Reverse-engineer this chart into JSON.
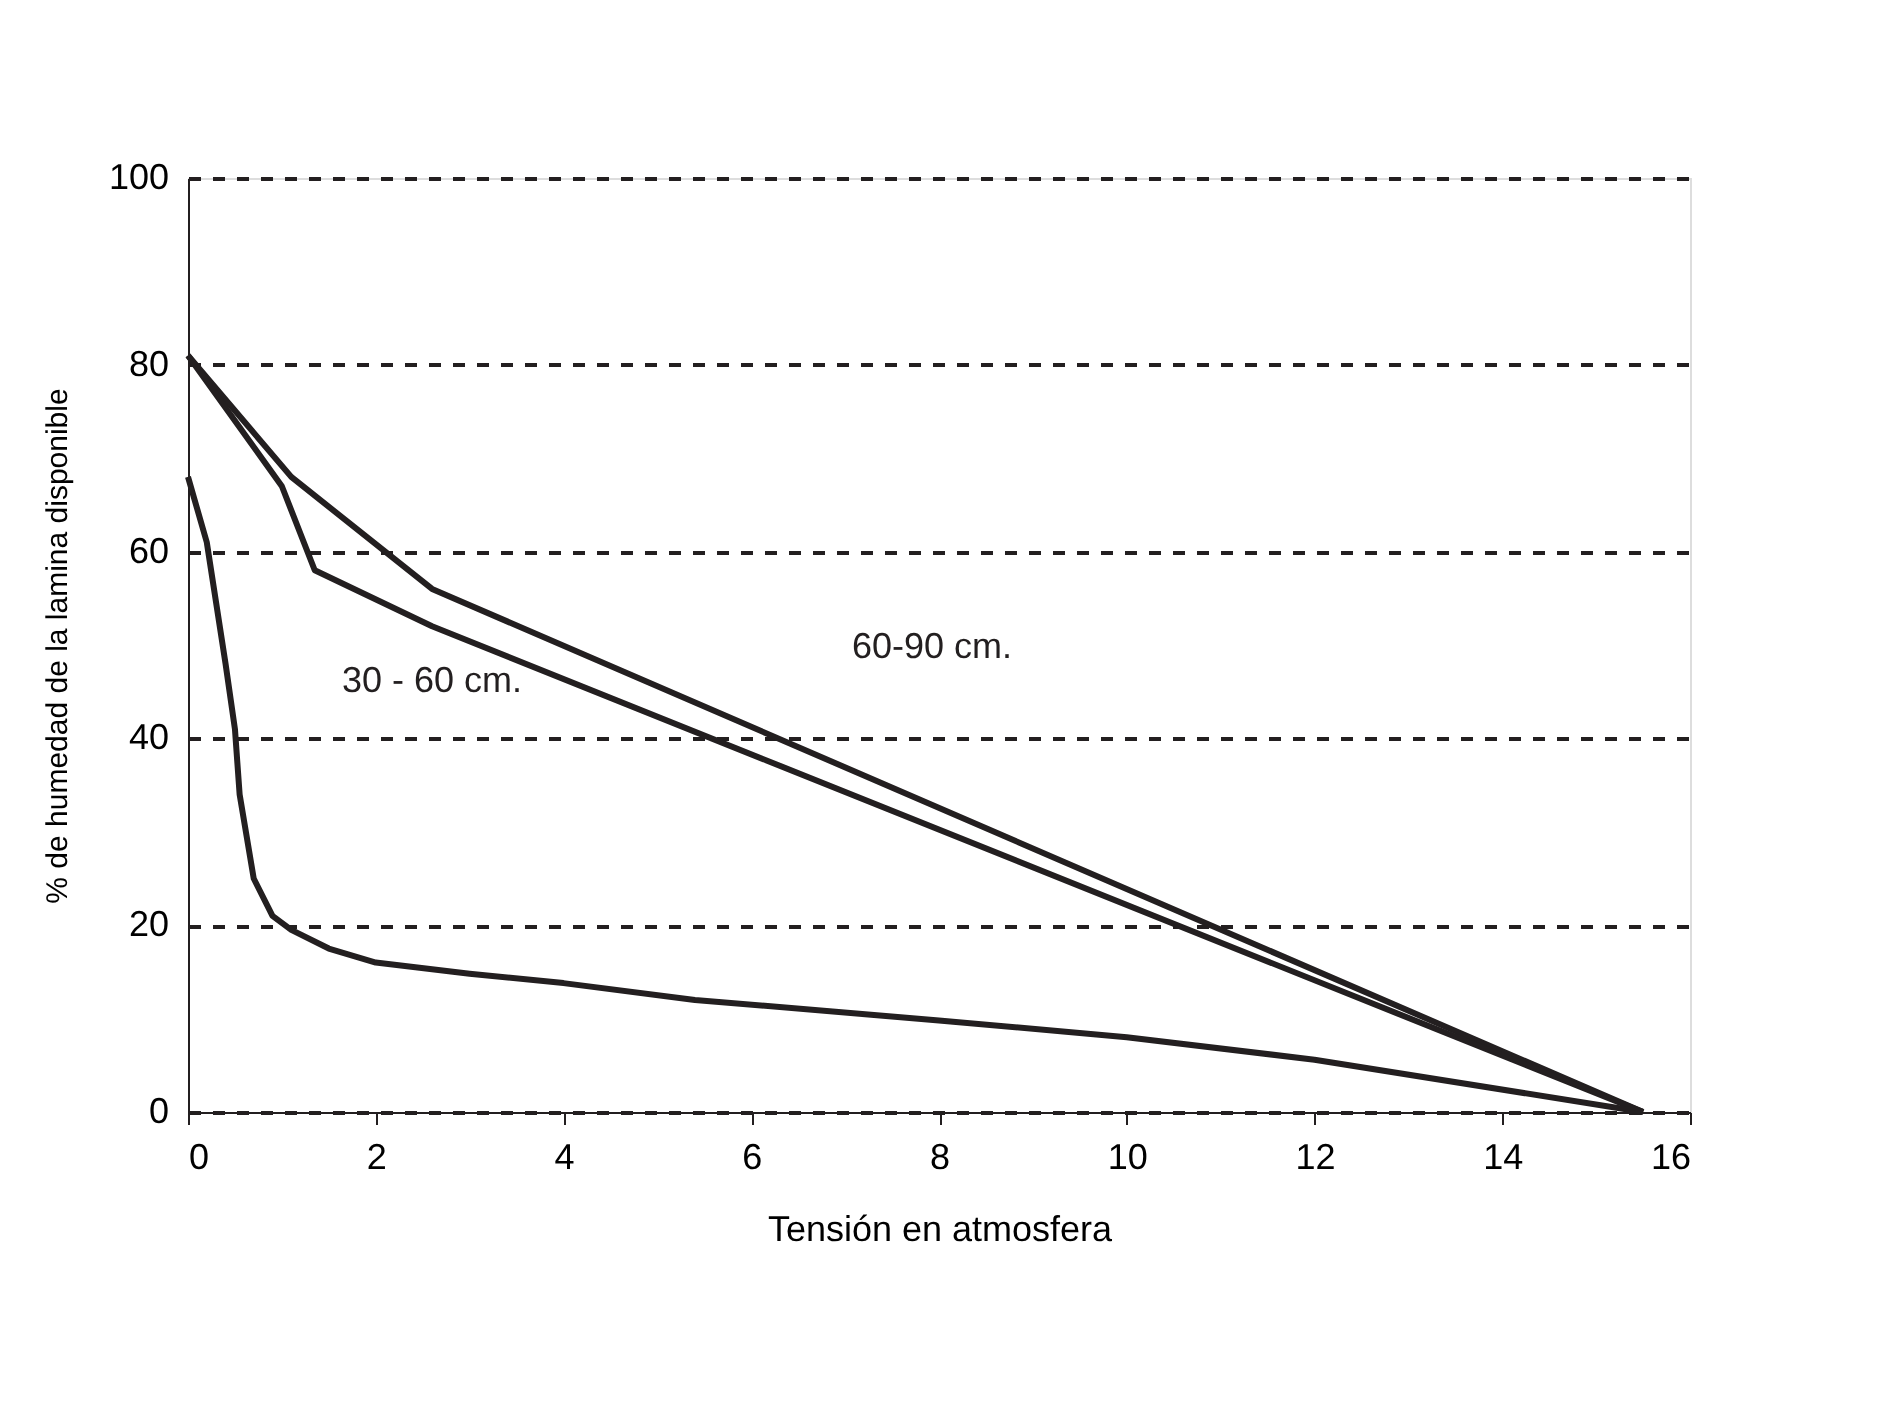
{
  "chart_data": {
    "type": "line",
    "xlabel": "Tensión en atmosfera",
    "ylabel": "% de humedad de la lamina disponible",
    "xlim": [
      0,
      16
    ],
    "xticks": [
      0,
      2,
      4,
      6,
      8,
      10,
      12,
      14,
      16
    ],
    "ylim": [
      0,
      100
    ],
    "yticks": [
      0,
      20,
      40,
      60,
      80,
      100
    ],
    "grid": "y",
    "line_style": "solid",
    "marker": "none",
    "series": [
      {
        "color": "#231f20",
        "x": [
          0,
          1.1,
          2.6,
          15.5
        ],
        "values": [
          81,
          68,
          56,
          0
        ]
      },
      {
        "color": "#231f20",
        "x": [
          0,
          1.0,
          1.35,
          2.6,
          15.5
        ],
        "values": [
          81,
          67,
          58,
          52,
          0
        ]
      },
      {
        "color": "#231f20",
        "x": [
          0,
          0.2,
          0.4,
          0.5,
          0.55,
          0.7,
          0.9,
          1.1,
          1.5,
          2,
          3,
          4,
          5.4,
          8,
          10,
          12,
          15.5
        ],
        "values": [
          68,
          61,
          48,
          41,
          34,
          25,
          21,
          19.5,
          17.5,
          16,
          14.8,
          13.8,
          12,
          9.8,
          8,
          5.6,
          0
        ]
      }
    ],
    "annotations": [
      "30 - 60 cm.",
      "60-90 cm."
    ]
  }
}
